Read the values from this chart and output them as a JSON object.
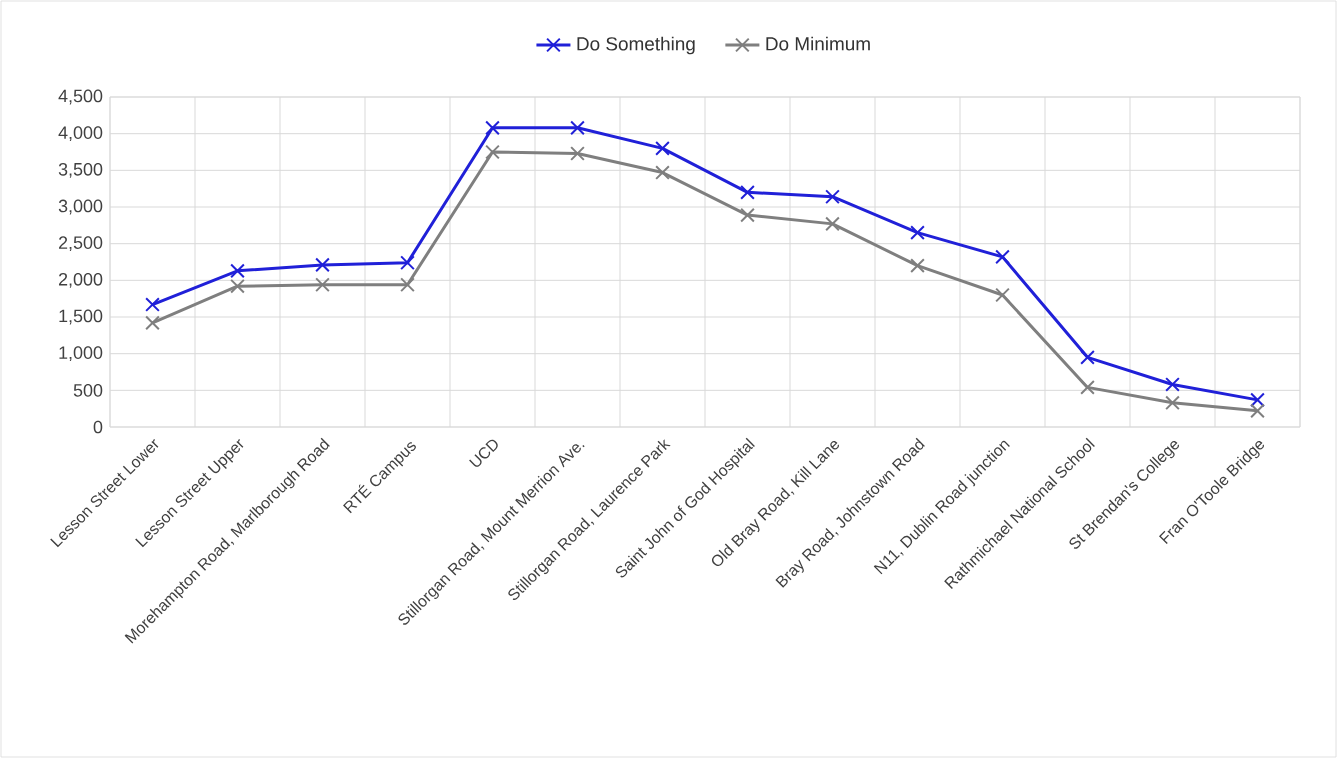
{
  "chart_data": {
    "type": "line",
    "categories": [
      "Lesson Street Lower",
      "Lesson Street Upper",
      "Morehampton Road, Marlborough Road",
      "RTÉ Campus",
      "UCD",
      "Stillorgan Road, Mount Merrion Ave.",
      "Stillorgan Road, Laurence Park",
      "Saint John of God Hospital",
      "Old Bray Road, Kill Lane",
      "Bray Road, Johnstown Road",
      "N11, Dublin Road junction",
      "Rathmichael National School",
      "St Brendan's College",
      "Fran O'Toole Bridge"
    ],
    "series": [
      {
        "name": "Do Something",
        "color": "#2020d8",
        "values": [
          1670,
          2130,
          2210,
          2240,
          4080,
          4080,
          3800,
          3200,
          3140,
          2650,
          2320,
          950,
          580,
          370
        ]
      },
      {
        "name": "Do Minimum",
        "color": "#7f7f7f",
        "values": [
          1420,
          1920,
          1940,
          1940,
          3750,
          3730,
          3470,
          2890,
          2770,
          2200,
          1800,
          540,
          330,
          220
        ]
      }
    ],
    "ylim": [
      0,
      4500
    ],
    "yticks": [
      0,
      500,
      {
        "value": 1000,
        "label": "1,000"
      },
      {
        "value": 1500,
        "label": "1,500"
      },
      {
        "value": 2000,
        "label": "2,000"
      },
      {
        "value": 2500,
        "label": "2,500"
      },
      {
        "value": 3000,
        "label": "3,000"
      },
      {
        "value": 3500,
        "label": "3,500"
      },
      {
        "value": 4000,
        "label": "4,000"
      },
      {
        "value": 4500,
        "label": "4,500"
      }
    ],
    "grid": true,
    "legend": "top",
    "marker": "cross",
    "line_style": "solid"
  }
}
